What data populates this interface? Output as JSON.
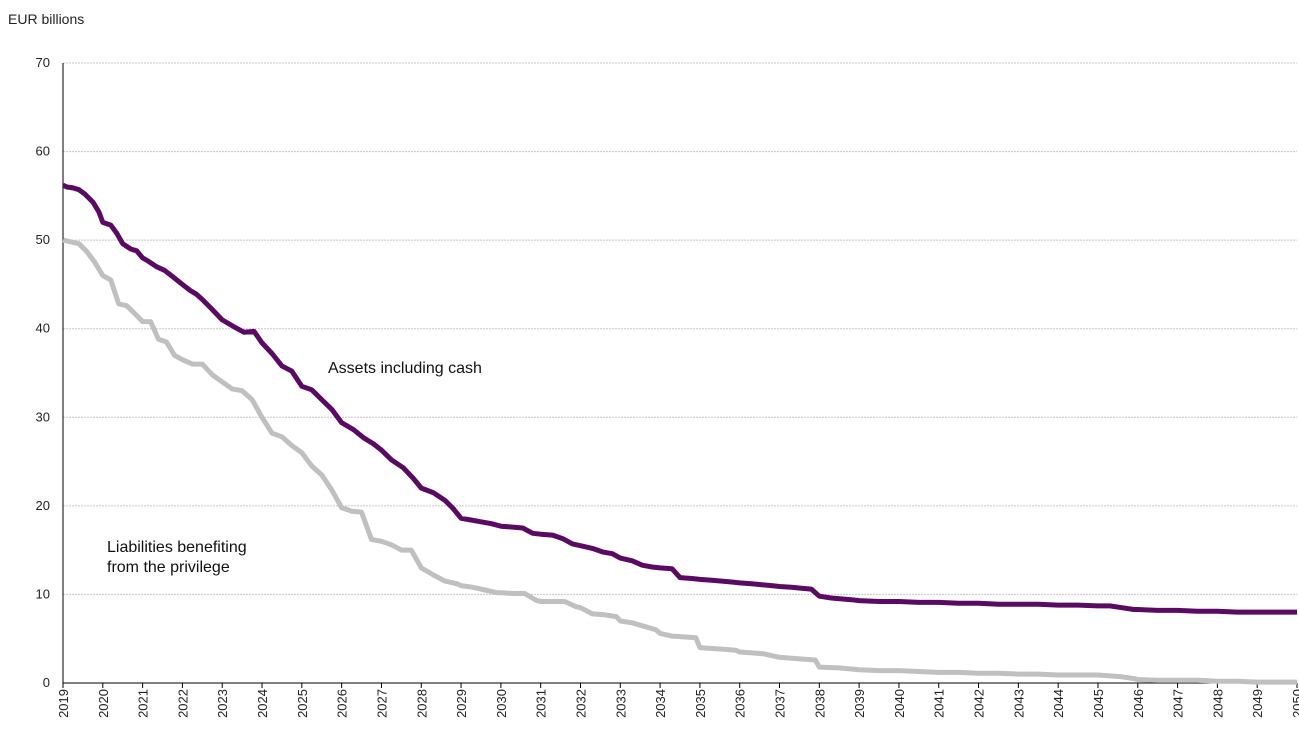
{
  "chart_data": {
    "type": "line",
    "ylabel": "EUR billions",
    "ylim": [
      0,
      70
    ],
    "yticks": [
      0,
      10,
      20,
      30,
      40,
      50,
      60,
      70
    ],
    "xlim": [
      2019,
      2050
    ],
    "xticks": [
      "2019",
      "2020",
      "2021",
      "2022",
      "2023",
      "2024",
      "2025",
      "2026",
      "2027",
      "2028",
      "2029",
      "2030",
      "2031",
      "2032",
      "2033",
      "2034",
      "2035",
      "2036",
      "2037",
      "2038",
      "2039",
      "2040",
      "2041",
      "2042",
      "2043",
      "2044",
      "2045",
      "2046",
      "2047",
      "2048",
      "2049",
      "2050"
    ],
    "grid": true,
    "series": [
      {
        "name": "Assets including cash",
        "color": "#5b0a63",
        "x": [
          2019.0,
          2019.1,
          2019.25,
          2019.4,
          2019.55,
          2019.75,
          2019.9,
          2020.0,
          2020.2,
          2020.35,
          2020.5,
          2020.7,
          2020.85,
          2021.0,
          2021.15,
          2021.35,
          2021.55,
          2021.75,
          2022.0,
          2022.2,
          2022.35,
          2022.5,
          2022.7,
          2023.0,
          2023.3,
          2023.55,
          2023.8,
          2024.0,
          2024.25,
          2024.5,
          2024.75,
          2025.0,
          2025.25,
          2025.5,
          2025.75,
          2026.0,
          2026.3,
          2026.55,
          2026.8,
          2027.0,
          2027.25,
          2027.55,
          2027.8,
          2028.0,
          2028.3,
          2028.6,
          2028.8,
          2029.0,
          2029.25,
          2029.5,
          2029.75,
          2030.0,
          2030.3,
          2030.55,
          2030.8,
          2031.0,
          2031.3,
          2031.55,
          2031.8,
          2032.0,
          2032.3,
          2032.55,
          2032.8,
          2033.0,
          2033.3,
          2033.55,
          2033.8,
          2034.0,
          2034.3,
          2034.5,
          2034.8,
          2035.0,
          2035.3,
          2035.55,
          2035.8,
          2036.0,
          2036.3,
          2036.55,
          2036.8,
          2037.0,
          2037.3,
          2037.55,
          2037.8,
          2038.0,
          2038.3,
          2038.55,
          2038.8,
          2039.0,
          2039.5,
          2040.0,
          2040.5,
          2041.0,
          2041.5,
          2042.0,
          2042.5,
          2043.0,
          2043.5,
          2044.0,
          2044.5,
          2045.0,
          2045.3,
          2045.6,
          2045.9,
          2046.0,
          2046.5,
          2047.0,
          2047.5,
          2048.0,
          2048.5,
          2049.0,
          2049.5,
          2050.0
        ],
        "y": [
          56.2,
          56.0,
          55.9,
          55.7,
          55.2,
          54.3,
          53.2,
          52.0,
          51.7,
          50.8,
          49.6,
          49.0,
          48.8,
          48.0,
          47.6,
          47.0,
          46.6,
          45.9,
          45.0,
          44.3,
          43.9,
          43.3,
          42.4,
          41.0,
          40.2,
          39.6,
          39.7,
          38.4,
          37.2,
          35.8,
          35.2,
          33.5,
          33.1,
          32.0,
          30.9,
          29.4,
          28.6,
          27.7,
          27.0,
          26.3,
          25.2,
          24.3,
          23.1,
          22.0,
          21.5,
          20.6,
          19.7,
          18.6,
          18.4,
          18.2,
          18.0,
          17.7,
          17.6,
          17.5,
          16.9,
          16.8,
          16.7,
          16.3,
          15.7,
          15.5,
          15.2,
          14.8,
          14.6,
          14.1,
          13.8,
          13.3,
          13.1,
          13.0,
          12.9,
          11.9,
          11.8,
          11.7,
          11.6,
          11.5,
          11.4,
          11.3,
          11.2,
          11.1,
          11.0,
          10.9,
          10.8,
          10.7,
          10.6,
          9.8,
          9.6,
          9.5,
          9.4,
          9.3,
          9.2,
          9.2,
          9.1,
          9.1,
          9.0,
          9.0,
          8.9,
          8.9,
          8.9,
          8.8,
          8.8,
          8.7,
          8.7,
          8.5,
          8.3,
          8.3,
          8.2,
          8.2,
          8.1,
          8.1,
          8.0,
          8.0,
          8.0,
          8.0
        ]
      },
      {
        "name": "Liabilities benefiting from the privilege",
        "color": "#c0c0c0",
        "x": [
          2019.0,
          2019.2,
          2019.4,
          2019.6,
          2019.8,
          2020.0,
          2020.2,
          2020.4,
          2020.6,
          2020.85,
          2021.0,
          2021.2,
          2021.4,
          2021.6,
          2021.8,
          2022.0,
          2022.25,
          2022.5,
          2022.75,
          2023.0,
          2023.25,
          2023.5,
          2023.75,
          2024.0,
          2024.25,
          2024.5,
          2024.75,
          2025.0,
          2025.25,
          2025.5,
          2025.75,
          2026.0,
          2026.25,
          2026.5,
          2026.75,
          2027.0,
          2027.25,
          2027.5,
          2027.75,
          2028.0,
          2028.3,
          2028.6,
          2028.9,
          2029.0,
          2029.3,
          2029.6,
          2029.9,
          2030.0,
          2030.3,
          2030.6,
          2030.9,
          2031.0,
          2031.3,
          2031.6,
          2031.9,
          2032.0,
          2032.3,
          2032.6,
          2032.9,
          2033.0,
          2033.3,
          2033.6,
          2033.9,
          2034.0,
          2034.3,
          2034.6,
          2034.9,
          2035.0,
          2035.3,
          2035.6,
          2035.9,
          2036.0,
          2036.3,
          2036.6,
          2036.9,
          2037.0,
          2037.3,
          2037.6,
          2037.9,
          2038.0,
          2038.5,
          2039.0,
          2039.5,
          2040.0,
          2040.5,
          2041.0,
          2041.5,
          2042.0,
          2042.5,
          2043.0,
          2043.5,
          2044.0,
          2044.5,
          2045.0,
          2045.3,
          2045.6,
          2045.9,
          2046.0,
          2046.5,
          2047.0,
          2047.5,
          2048.0,
          2048.5,
          2049.0,
          2049.5,
          2050.0
        ],
        "y": [
          50.0,
          49.8,
          49.6,
          48.7,
          47.5,
          46.0,
          45.5,
          42.8,
          42.6,
          41.5,
          40.8,
          40.8,
          38.8,
          38.5,
          37.0,
          36.5,
          36.0,
          36.0,
          34.8,
          34.0,
          33.2,
          33.0,
          32.0,
          30.0,
          28.2,
          27.8,
          26.8,
          26.0,
          24.5,
          23.5,
          21.8,
          19.8,
          19.4,
          19.3,
          16.2,
          16.0,
          15.6,
          15.0,
          15.0,
          13.0,
          12.2,
          11.5,
          11.2,
          11.0,
          10.8,
          10.5,
          10.2,
          10.2,
          10.1,
          10.1,
          9.3,
          9.2,
          9.2,
          9.2,
          8.6,
          8.5,
          7.8,
          7.7,
          7.5,
          7.0,
          6.8,
          6.4,
          6.0,
          5.6,
          5.3,
          5.2,
          5.1,
          4.0,
          3.9,
          3.8,
          3.7,
          3.5,
          3.4,
          3.3,
          3.0,
          2.9,
          2.8,
          2.7,
          2.6,
          1.8,
          1.7,
          1.5,
          1.4,
          1.4,
          1.3,
          1.2,
          1.2,
          1.1,
          1.1,
          1.0,
          1.0,
          0.9,
          0.9,
          0.9,
          0.8,
          0.7,
          0.5,
          0.4,
          0.3,
          0.3,
          0.3,
          0.2,
          0.2,
          0.1,
          0.1,
          0.1
        ]
      }
    ],
    "annotations": [
      {
        "lines": [
          "Assets including cash"
        ]
      },
      {
        "lines": [
          "Liabilities benefiting",
          "from the privilege"
        ]
      }
    ]
  }
}
